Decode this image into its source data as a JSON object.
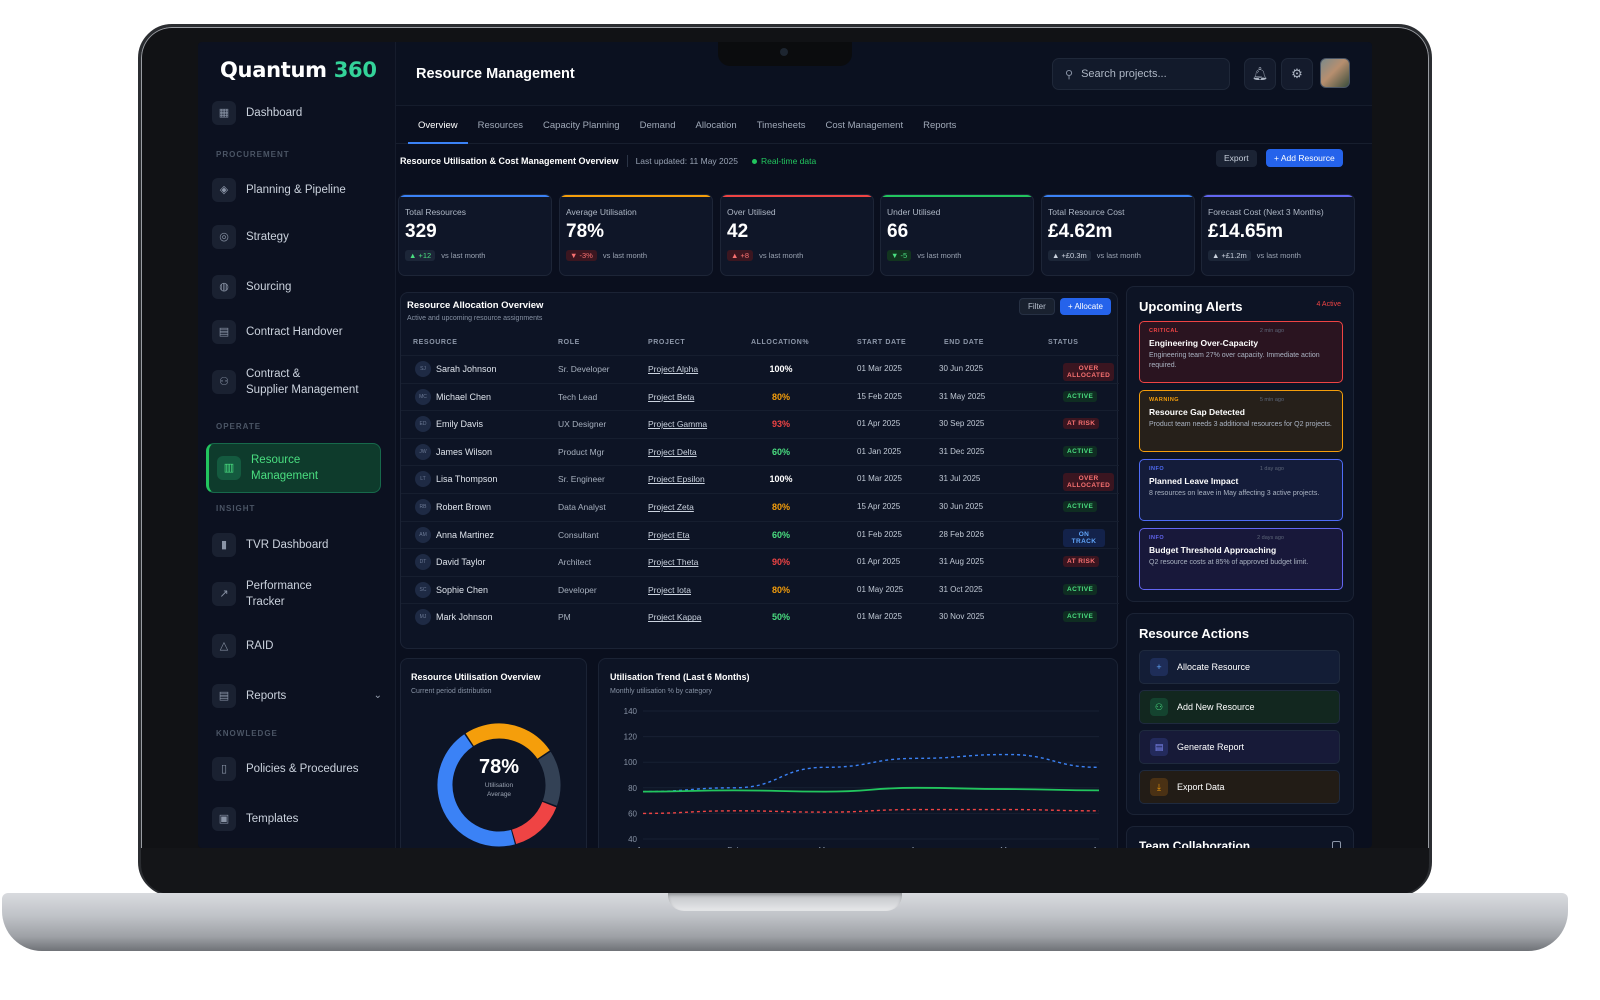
{
  "brand": {
    "name": "Quantum",
    "num": "360"
  },
  "sidebar": {
    "dashboard": "Dashboard",
    "sections": {
      "procurement": "PROCUREMENT",
      "operate": "OPERATE",
      "insight": "INSIGHT",
      "knowledge": "KNOWLEDGE"
    },
    "items": {
      "planning": "Planning & Pipeline",
      "strategy": "Strategy",
      "sourcing": "Sourcing",
      "contract_handover": "Contract Handover",
      "contract_supplier_1": "Contract &",
      "contract_supplier_2": "Supplier Management",
      "resource_1": "Resource",
      "resource_2": "Management",
      "tvr": "TVR Dashboard",
      "performance_1": "Performance",
      "performance_2": "Tracker",
      "raid": "RAID",
      "reports": "Reports",
      "policies": "Policies & Procedures",
      "templates": "Templates"
    }
  },
  "header": {
    "title": "Resource Management",
    "search_placeholder": "Search projects..."
  },
  "tabs": [
    "Overview",
    "Resources",
    "Capacity Planning",
    "Demand",
    "Allocation",
    "Timesheets",
    "Cost Management",
    "Reports"
  ],
  "subheader": {
    "title": "Resource Utilisation & Cost Management Overview",
    "updated": "Last updated: 11 May 2025",
    "realtime": "Real-time data",
    "export": "Export",
    "add": "+ Add Resource"
  },
  "kpis": [
    {
      "label": "Total Resources",
      "value": "329",
      "delta": "▲ +12",
      "note": "vs last month",
      "color": "#3b82f6"
    },
    {
      "label": "Average Utilisation",
      "value": "78%",
      "delta": "▼ -3%",
      "note": "vs last month",
      "color": "#f59e0b"
    },
    {
      "label": "Over Utilised",
      "value": "42",
      "delta": "▲ +8",
      "note": "vs last month",
      "color": "#ef4444"
    },
    {
      "label": "Under Utilised",
      "value": "66",
      "delta": "▼ -5",
      "note": "vs last month",
      "color": "#22c55e"
    },
    {
      "label": "Total Resource Cost",
      "value": "£4.62m",
      "delta": "▲ +£0.3m",
      "note": "vs last month",
      "color": "#3b82f6"
    },
    {
      "label": "Forecast Cost (Next 3 Months)",
      "value": "£14.65m",
      "delta": "▲ +£1.2m",
      "note": "vs last month",
      "color": "#6366f1"
    }
  ],
  "allocation": {
    "title": "Resource Allocation Overview",
    "subtitle": "Active and upcoming resource assignments",
    "filter": "Filter",
    "allocate": "+ Allocate",
    "columns": [
      "RESOURCE",
      "ROLE",
      "PROJECT",
      "ALLOCATION%",
      "START DATE",
      "END DATE",
      "STATUS"
    ],
    "rows": [
      {
        "ini": "SJ",
        "name": "Sarah Johnson",
        "role": "Sr. Developer",
        "project": "Project Alpha",
        "alloc": "100%",
        "start": "01 Mar 2025",
        "end": "30 Jun 2025",
        "status": "OVER ALLOCATED"
      },
      {
        "ini": "MC",
        "name": "Michael Chen",
        "role": "Tech Lead",
        "project": "Project Beta",
        "alloc": "80%",
        "start": "15 Feb 2025",
        "end": "31 May 2025",
        "status": "ACTIVE"
      },
      {
        "ini": "ED",
        "name": "Emily Davis",
        "role": "UX Designer",
        "project": "Project Gamma",
        "alloc": "93%",
        "start": "01 Apr 2025",
        "end": "30 Sep 2025",
        "status": "AT RISK"
      },
      {
        "ini": "JW",
        "name": "James Wilson",
        "role": "Product Mgr",
        "project": "Project Delta",
        "alloc": "60%",
        "start": "01 Jan 2025",
        "end": "31 Dec 2025",
        "status": "ACTIVE"
      },
      {
        "ini": "LT",
        "name": "Lisa Thompson",
        "role": "Sr. Engineer",
        "project": "Project Epsilon",
        "alloc": "100%",
        "start": "01 Mar 2025",
        "end": "31 Jul 2025",
        "status": "OVER ALLOCATED"
      },
      {
        "ini": "RB",
        "name": "Robert Brown",
        "role": "Data Analyst",
        "project": "Project Zeta",
        "alloc": "80%",
        "start": "15 Apr 2025",
        "end": "30 Jun 2025",
        "status": "ACTIVE"
      },
      {
        "ini": "AM",
        "name": "Anna Martinez",
        "role": "Consultant",
        "project": "Project Eta",
        "alloc": "60%",
        "start": "01 Feb 2025",
        "end": "28 Feb 2026",
        "status": "ON TRACK"
      },
      {
        "ini": "DT",
        "name": "David Taylor",
        "role": "Architect",
        "project": "Project Theta",
        "alloc": "90%",
        "start": "01 Apr 2025",
        "end": "31 Aug 2025",
        "status": "AT RISK"
      },
      {
        "ini": "SC",
        "name": "Sophie Chen",
        "role": "Developer",
        "project": "Project Iota",
        "alloc": "80%",
        "start": "01 May 2025",
        "end": "31 Oct 2025",
        "status": "ACTIVE"
      },
      {
        "ini": "MJ",
        "name": "Mark Johnson",
        "role": "PM",
        "project": "Project Kappa",
        "alloc": "50%",
        "start": "01 Mar 2025",
        "end": "30 Nov 2025",
        "status": "ACTIVE"
      }
    ]
  },
  "alerts": {
    "title": "Upcoming Alerts",
    "badge": "4 Active",
    "items": [
      {
        "level": "CRITICAL",
        "ago": "2 min ago",
        "title": "Engineering Over-Capacity",
        "desc": "Engineering team 27% over capacity. Immediate action required.",
        "color": "#ef4444",
        "bg": "#2a1420"
      },
      {
        "level": "WARNING",
        "ago": "5 min ago",
        "title": "Resource Gap Detected",
        "desc": "Product team needs 3 additional resources for Q2 projects.",
        "color": "#f59e0b",
        "bg": "#26201a"
      },
      {
        "level": "INFO",
        "ago": "1 day ago",
        "title": "Planned Leave Impact",
        "desc": "8 resources on leave in May affecting 3 active projects.",
        "color": "#4f6cf7",
        "bg": "#141c3a"
      },
      {
        "level": "INFO",
        "ago": "2 days ago",
        "title": "Budget Threshold Approaching",
        "desc": "Q2 resource costs at 85% of approved budget limit.",
        "color": "#6366f1",
        "bg": "#18183a"
      }
    ]
  },
  "actions": {
    "title": "Resource Actions",
    "items": [
      {
        "label": "Allocate Resource",
        "icon": "+",
        "bg": "#131d36",
        "iconbg": "#1e2d58",
        "iconcolor": "#60a5fa"
      },
      {
        "label": "Add New Resource",
        "icon": "⚇",
        "bg": "#12271f",
        "iconbg": "#14432f",
        "iconcolor": "#4ade80"
      },
      {
        "label": "Generate Report",
        "icon": "▤",
        "bg": "#171a38",
        "iconbg": "#232a5c",
        "iconcolor": "#818cf8"
      },
      {
        "label": "Export Data",
        "icon": "⤓",
        "bg": "#221c16",
        "iconbg": "#4a3114",
        "iconcolor": "#f59e0b"
      }
    ]
  },
  "team": {
    "title": "Team Collaboration"
  },
  "donut": {
    "title": "Resource Utilisation Overview",
    "subtitle": "Current period distribution",
    "value": "78%",
    "label1": "Utilisation",
    "label2": "Average",
    "segments": [
      {
        "value": 45,
        "color": "#3b82f6"
      },
      {
        "value": 25,
        "color": "#f59e0b"
      },
      {
        "value": 15,
        "color": "#334155"
      },
      {
        "value": 15,
        "color": "#ef4444"
      }
    ]
  },
  "trend": {
    "title": "Utilisation Trend (Last 6 Months)",
    "subtitle": "Monthly utilisation % by category"
  },
  "chart_data": {
    "type": "line",
    "x": [
      "Jan",
      "Feb",
      "Mar",
      "Apr",
      "May",
      "Jun"
    ],
    "ylim": [
      40,
      140
    ],
    "yticks": [
      140,
      120,
      100,
      80,
      60,
      40
    ],
    "series": [
      {
        "values": [
          77,
          80,
          96,
          103,
          106,
          96
        ],
        "color": "#3b82f6",
        "dash": true
      },
      {
        "values": [
          77,
          78,
          77,
          80,
          79,
          78
        ],
        "color": "#22c55e",
        "dash": false
      },
      {
        "values": [
          60,
          62,
          61,
          63,
          63,
          62
        ],
        "color": "#ef4444",
        "dash": true
      }
    ]
  }
}
